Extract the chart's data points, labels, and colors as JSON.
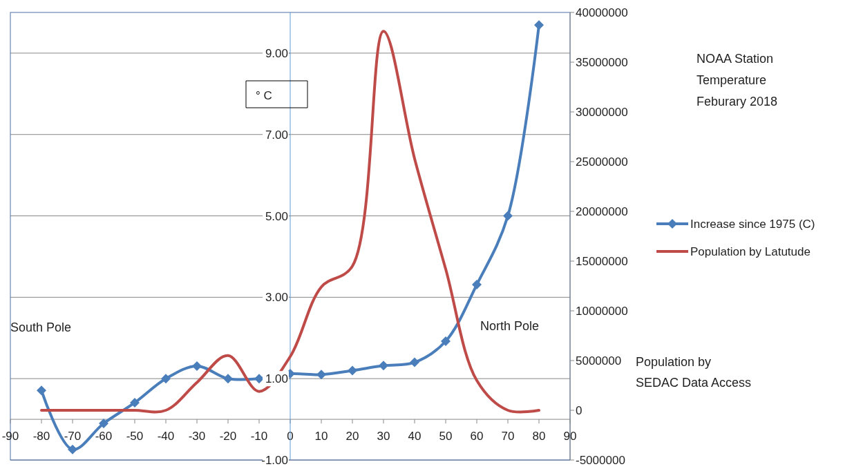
{
  "chart_data": {
    "type": "line",
    "title": "NOAA Station\nTemperature\nFeburary 2018",
    "ylabel": "° C",
    "annotations": [
      "South Pole",
      "North Pole",
      "Population by\nSEDAC Data Access"
    ],
    "x": [
      -80,
      -70,
      -60,
      -50,
      -40,
      -30,
      -20,
      -10,
      0,
      10,
      20,
      30,
      40,
      50,
      60,
      70,
      80
    ],
    "xlim": [
      -90,
      90
    ],
    "xticks": [
      -90,
      -80,
      -70,
      -60,
      -50,
      -40,
      -30,
      -20,
      -10,
      0,
      10,
      20,
      30,
      40,
      50,
      60,
      70,
      80,
      90
    ],
    "ylim": [
      -1,
      10
    ],
    "yticks": [
      {
        "value": -1,
        "label": "-1.00"
      },
      {
        "value": 1,
        "label": "1.00"
      },
      {
        "value": 3,
        "label": "3.00"
      },
      {
        "value": 5,
        "label": "5.00"
      },
      {
        "value": 7,
        "label": "7.00"
      },
      {
        "value": 9,
        "label": "9.00"
      }
    ],
    "y2lim": [
      -5000000,
      40000000
    ],
    "y2ticks": [
      -5000000,
      0,
      5000000,
      10000000,
      15000000,
      20000000,
      25000000,
      30000000,
      35000000,
      40000000
    ],
    "grid": "y",
    "legend": "right",
    "series": [
      {
        "name": "Increase since 1975 (C)",
        "color": "#4a7ebb",
        "marker": "diamond",
        "values": [
          0.71,
          -0.74,
          -0.1,
          0.41,
          1.0,
          1.31,
          1.0,
          1.0,
          1.12,
          1.1,
          1.2,
          1.32,
          1.4,
          1.92,
          3.31,
          5.0,
          9.69
        ]
      },
      {
        "name": "Population by Latutude",
        "color": "#be4b48",
        "marker": "none",
        "axis": "y2",
        "values": [
          0,
          0,
          0,
          0,
          0,
          2800000,
          5500000,
          1900000,
          5400000,
          12400000,
          14500000,
          38100000,
          25300000,
          14200000,
          3000000,
          0,
          0
        ]
      }
    ]
  }
}
